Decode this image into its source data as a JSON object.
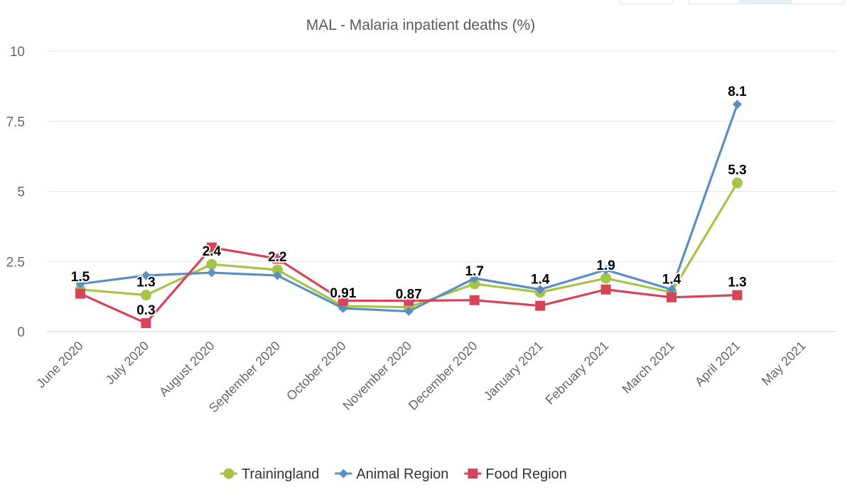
{
  "colors": {
    "accent": "#4572a7"
  },
  "chart_data": {
    "type": "line",
    "title": "MAL - Malaria inpatient deaths (%)",
    "categories": [
      "June 2020",
      "July 2020",
      "August 2020",
      "September 2020",
      "October 2020",
      "November 2020",
      "December 2020",
      "January 2021",
      "February 2021",
      "March 2021",
      "April 2021",
      "May 2021"
    ],
    "ylim": [
      0,
      10
    ],
    "yticks": [
      0,
      2.5,
      5,
      7.5,
      10
    ],
    "ytick_labels": [
      "0",
      "2.5",
      "5",
      "7.5",
      "10"
    ],
    "grid": true,
    "legend_position": "bottom-center",
    "series": [
      {
        "name": "Trainingland",
        "color": "#a6c34a",
        "marker": "circle",
        "values": [
          1.5,
          1.3,
          2.4,
          2.2,
          0.91,
          0.87,
          1.7,
          1.4,
          1.9,
          1.4,
          5.3,
          null
        ]
      },
      {
        "name": "Animal Region",
        "color": "#5b8fc4",
        "marker": "diamond",
        "values": [
          1.7,
          2.0,
          2.1,
          2.0,
          0.83,
          0.72,
          1.9,
          1.5,
          2.2,
          1.5,
          8.1,
          null
        ]
      },
      {
        "name": "Food Region",
        "color": "#d6445a",
        "marker": "square",
        "values": [
          1.35,
          0.3,
          3.0,
          2.6,
          1.1,
          1.1,
          1.12,
          0.92,
          1.5,
          1.22,
          1.3,
          null
        ]
      }
    ],
    "data_labels": [
      {
        "category": "June 2020",
        "text": "1.5"
      },
      {
        "category": "July 2020",
        "text": "1.3"
      },
      {
        "category": "July 2020",
        "text": "0.3"
      },
      {
        "category": "August 2020",
        "text": "2.4"
      },
      {
        "category": "September 2020",
        "text": "2.2"
      },
      {
        "category": "October 2020",
        "text": "0.91"
      },
      {
        "category": "November 2020",
        "text": "0.87"
      },
      {
        "category": "December 2020",
        "text": "1.7"
      },
      {
        "category": "January 2021",
        "text": "1.4"
      },
      {
        "category": "February 2021",
        "text": "1.9"
      },
      {
        "category": "March 2021",
        "text": "1.4"
      },
      {
        "category": "April 2021",
        "text": "8.1"
      },
      {
        "category": "April 2021",
        "text": "5.3"
      },
      {
        "category": "April 2021",
        "text": "1.3"
      }
    ]
  }
}
